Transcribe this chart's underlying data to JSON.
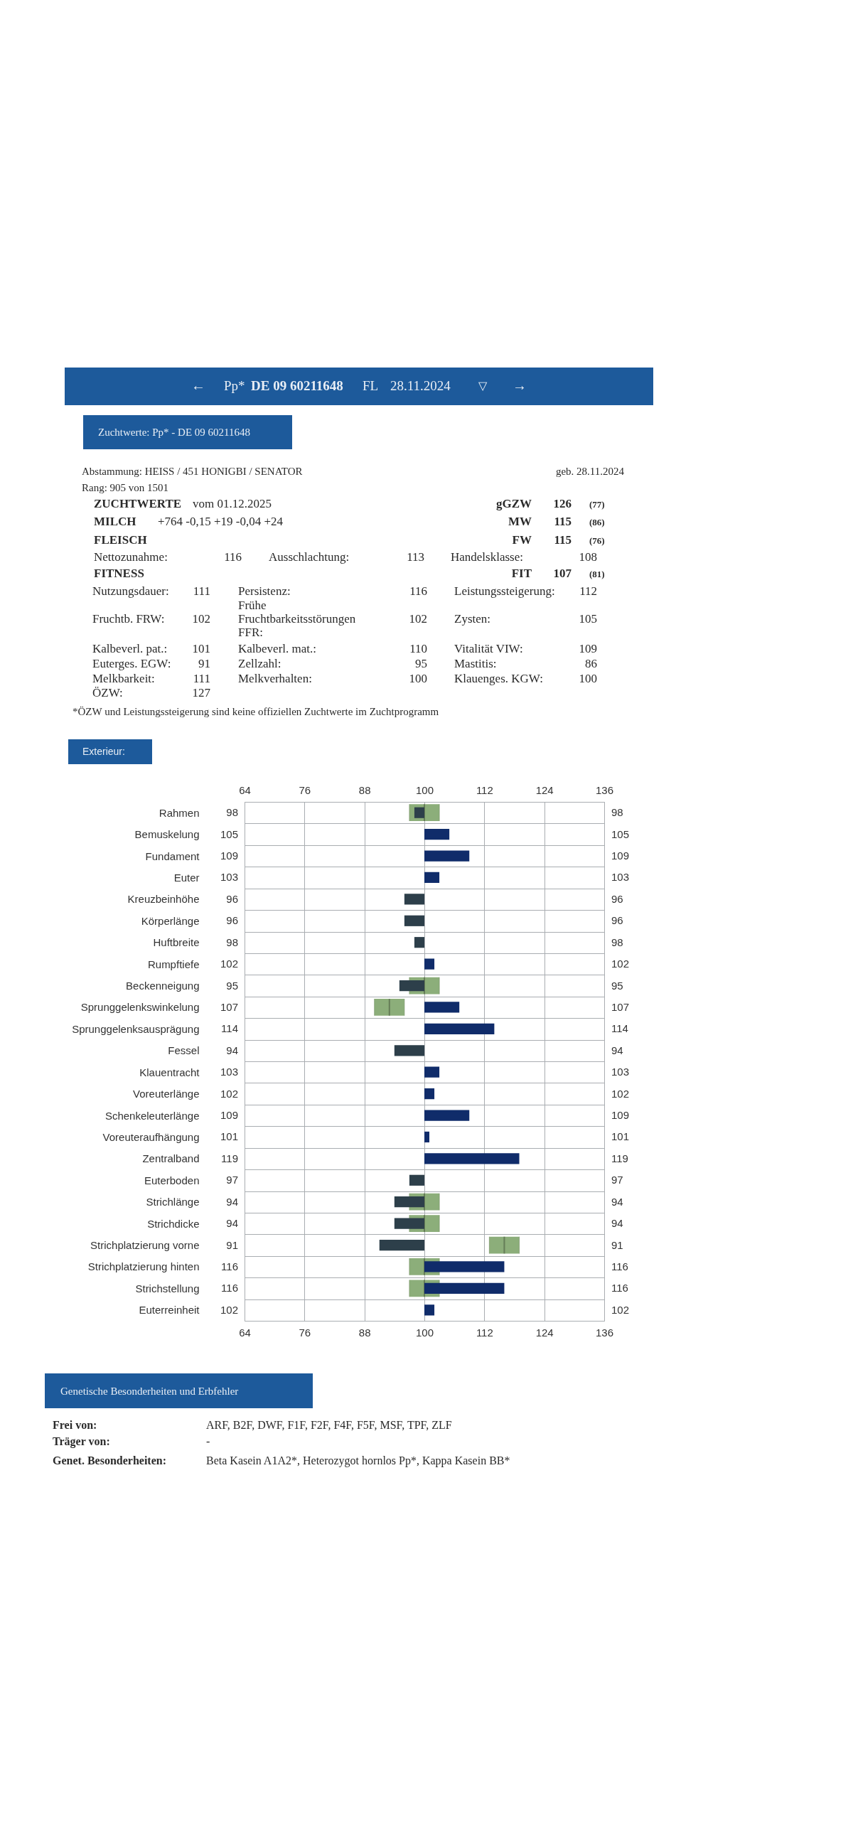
{
  "chart_data": [
    {
      "type": "other",
      "annotations": [
        "←",
        "Pp*",
        "DE 09 60211648",
        "FL",
        "28.11.2024",
        "▽",
        "→"
      ]
    },
    {
      "type": "other",
      "title": "Zuchtwerte: Pp* - DE 09 60211648",
      "annotations": [
        "Abstammung: HEISS / 451 HONIGBI / SENATOR",
        "Rang: 905 von 1501",
        "geb. 28.11.2024",
        "ZUCHTWERTE",
        "vom 01.12.2025",
        "gGZW",
        "126",
        "(77)",
        "MILCH",
        "+764 -0,15 +19 -0,04 +24",
        "MW",
        "115",
        "(86)",
        "FLEISCH",
        "FW",
        "115",
        "(76)",
        "Nettozunahme:",
        "116",
        "Ausschlachtung:",
        "113",
        "Handelsklasse:",
        "108",
        "FITNESS",
        "FIT",
        "107",
        "(81)",
        "Nutzungsdauer:",
        "111",
        "Persistenz:",
        "116",
        "Leistungssteigerung:",
        "112",
        "Fruchtb. FRW:",
        "102",
        "Frühe Fruchtbarkeitsstörungen FFR:",
        "102",
        "Zysten:",
        "105",
        "Kalbeverl. pat.:",
        "101",
        "Kalbeverl. mat.:",
        "110",
        "Vitalität VIW:",
        "109",
        "Euterges. EGW:",
        "91",
        "Zellzahl:",
        "95",
        "Mastitis:",
        "86",
        "Melkbarkeit:",
        "111",
        "Melkverhalten:",
        "100",
        "Klauenges. KGW:",
        "100",
        "ÖZW:",
        "127",
        "*ÖZW und Leistungssteigerung sind keine offiziellen Zuchtwerte im Zuchtprogramm"
      ]
    },
    {
      "type": "bar",
      "title": "Exterieur:",
      "orientation": "horizontal",
      "categories": [
        "Rahmen",
        "Bemuskelung",
        "Fundament",
        "Euter",
        "Kreuzbeinhöhe",
        "Körperlänge",
        "Huftbreite",
        "Rumpftiefe",
        "Beckenneigung",
        "Sprunggelenkswinkelung",
        "Sprunggelenksausprägung",
        "Fessel",
        "Klauentracht",
        "Voreuterlänge",
        "Schenkeleuterlänge",
        "Voreuteraufhängung",
        "Zentralband",
        "Euterboden",
        "Strichlänge",
        "Strichdicke",
        "Strichplatzierung vorne",
        "Strichplatzierung hinten",
        "Strichstellung",
        "Euterreinheit"
      ],
      "series": [
        {
          "type": "box",
          "color": "#8cae7a",
          "boxes": [
            {
              "low": 97,
              "q1": 97,
              "median": 100,
              "q3": 103,
              "high": 103
            },
            null,
            null,
            null,
            null,
            null,
            null,
            null,
            {
              "low": 97,
              "q1": 97,
              "median": 100,
              "q3": 103,
              "high": 103
            },
            {
              "low": 90,
              "q1": 90,
              "median": 93,
              "q3": 96,
              "high": 96
            },
            null,
            null,
            null,
            null,
            null,
            null,
            null,
            null,
            {
              "low": 97,
              "q1": 97,
              "median": 100,
              "q3": 103,
              "high": 103
            },
            {
              "low": 97,
              "q1": 97,
              "median": 100,
              "q3": 103,
              "high": 103
            },
            {
              "low": 113,
              "q1": 113,
              "median": 116,
              "q3": 119,
              "high": 119
            },
            {
              "low": 97,
              "q1": 97,
              "median": 100,
              "q3": 103,
              "high": 103
            },
            {
              "low": 97,
              "q1": 97,
              "median": 100,
              "q3": 103,
              "high": 103
            },
            null
          ]
        },
        {
          "type": "bar",
          "values": [
            -2,
            5,
            9,
            3,
            -4,
            -4,
            -2,
            2,
            -5,
            7,
            14,
            -6,
            3,
            2,
            9,
            1,
            19,
            -3,
            -6,
            -6,
            -9,
            16,
            16,
            2
          ],
          "base": [
            100,
            100,
            100,
            100,
            100,
            100,
            100,
            100,
            100,
            100,
            100,
            100,
            100,
            100,
            100,
            100,
            100,
            100,
            100,
            100,
            100,
            100,
            100,
            100
          ],
          "colors": [
            "#2d3f4a",
            "#102c6a",
            "#102c6a",
            "#102c6a",
            "#2d3f4a",
            "#2d3f4a",
            "#2d3f4a",
            "#102c6a",
            "#2d3f4a",
            "#102c6a",
            "#102c6a",
            "#2d3f4a",
            "#102c6a",
            "#102c6a",
            "#102c6a",
            "#102c6a",
            "#102c6a",
            "#2d3f4a",
            "#2d3f4a",
            "#2d3f4a",
            "#2d3f4a",
            "#102c6a",
            "#102c6a",
            "#102c6a"
          ],
          "value_labels": [
            "98",
            "105",
            "109",
            "103",
            "96",
            "96",
            "98",
            "102",
            "95",
            "107",
            "114",
            "94",
            "103",
            "102",
            "109",
            "101",
            "119",
            "97",
            "94",
            "94",
            "91",
            "116",
            "116",
            "102"
          ]
        }
      ],
      "xlim": [
        64,
        136
      ],
      "xticks": [
        64,
        76,
        88,
        100,
        112,
        124,
        136
      ],
      "x2lim": [
        64,
        136
      ],
      "x2ticks": [
        64,
        76,
        88,
        100,
        112,
        124,
        136
      ],
      "grid": true
    },
    {
      "type": "other",
      "title": "Genetische Besonderheiten und Erbfehler",
      "annotations": [
        "Frei von:",
        "ARF, B2F, DWF, F1F, F2F, F4F, F5F, MSF, TPF, ZLF",
        "Träger von:",
        "-",
        "Genet. Besonderheiten:",
        "Beta Kasein A1A2*, Heterozygot hornlos Pp*, Kappa Kasein BB*"
      ]
    }
  ]
}
